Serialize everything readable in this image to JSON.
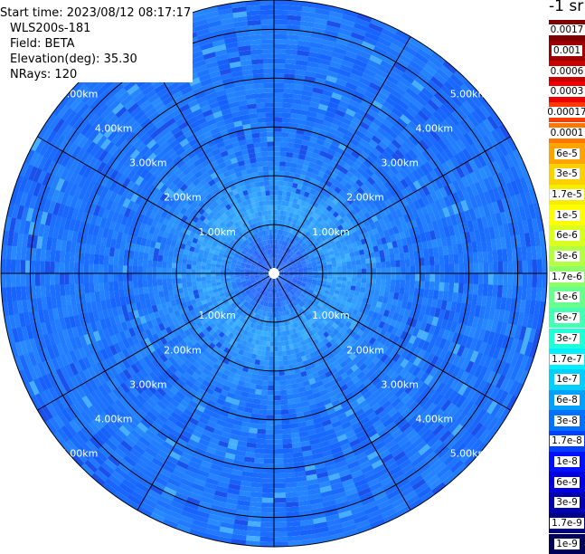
{
  "info": {
    "start_time": "Start time: 2023/08/12 08:17:17",
    "instrument": "WLS200s-181",
    "field": "Field: BETA",
    "elevation_label": "Elevation(deg):",
    "elevation_value": "35.30",
    "nrays": "NRays: 120"
  },
  "legend": {
    "unit": "-1 sr",
    "entries": [
      {
        "label": "0.0017",
        "color": "#7f0000"
      },
      {
        "label": "0.001",
        "color": "#9c0000"
      },
      {
        "label": "0.0006",
        "color": "#c80000"
      },
      {
        "label": "0.0003",
        "color": "#ee0000"
      },
      {
        "label": "0.00017",
        "color": "#ff3a00"
      },
      {
        "label": "0.0001",
        "color": "#ff7600"
      },
      {
        "label": "6e-5",
        "color": "#ffa300"
      },
      {
        "label": "3e-5",
        "color": "#ffd000"
      },
      {
        "label": "1.7e-5",
        "color": "#f5ee00"
      },
      {
        "label": "1e-5",
        "color": "#ffff00"
      },
      {
        "label": "6e-6",
        "color": "#d8ff1f"
      },
      {
        "label": "3e-6",
        "color": "#b4ff44"
      },
      {
        "label": "1.7e-6",
        "color": "#8fff68"
      },
      {
        "label": "1e-6",
        "color": "#68ff8f"
      },
      {
        "label": "6e-7",
        "color": "#44ffb4"
      },
      {
        "label": "3e-7",
        "color": "#1fffd8"
      },
      {
        "label": "1.7e-7",
        "color": "#00eeff"
      },
      {
        "label": "1e-7",
        "color": "#00d0ff"
      },
      {
        "label": "6e-8",
        "color": "#00a0ff"
      },
      {
        "label": "3e-8",
        "color": "#0070ff"
      },
      {
        "label": "1.7e-8",
        "color": "#0040ff"
      },
      {
        "label": "1e-8",
        "color": "#0010ff"
      },
      {
        "label": "6e-9",
        "color": "#0000e0"
      },
      {
        "label": "3e-9",
        "color": "#0000b0"
      },
      {
        "label": "1.7e-9",
        "color": "#000080"
      },
      {
        "label": "1e-9",
        "color": "#00005a"
      }
    ]
  },
  "chart_data": {
    "type": "heatmap",
    "projection": "polar-ppi",
    "field": "BETA",
    "elevation_deg": 35.3,
    "nrays": 120,
    "range_max_km": 5.6,
    "range_rings_km": [
      1,
      2,
      3,
      4,
      5
    ],
    "ring_labels": [
      "1.00km",
      "2.00km",
      "3.00km",
      "4.00km",
      "5.00km"
    ],
    "spoke_azimuths_deg": [
      0,
      30,
      60,
      90,
      120,
      150,
      180,
      210,
      240,
      270,
      300,
      330
    ],
    "radial_profile": [
      {
        "range_km": 0.0,
        "color": "#1e6aff"
      },
      {
        "range_km": 0.5,
        "color": "#2d6bff"
      },
      {
        "range_km": 0.9,
        "color": "#2a8bff"
      },
      {
        "range_km": 1.3,
        "color": "#35a3ff"
      },
      {
        "range_km": 2.0,
        "color": "#2a8cff"
      },
      {
        "range_km": 3.0,
        "color": "#1f77ff"
      },
      {
        "range_km": 5.6,
        "color": "#1f74ff"
      }
    ]
  }
}
